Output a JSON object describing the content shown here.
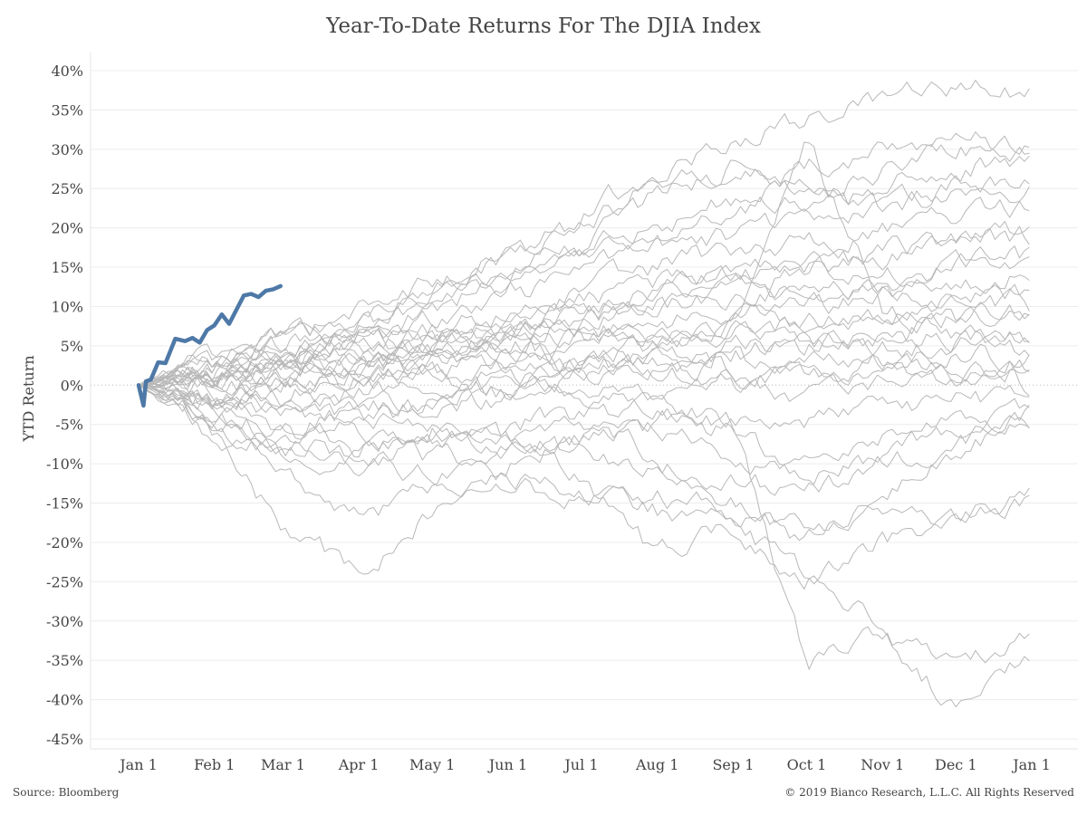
{
  "chart_data": {
    "type": "line",
    "title": "Year-To-Date Returns For The DJIA Index",
    "ylabel": "YTD Return",
    "xlabel": "",
    "ylim": [
      -45,
      40
    ],
    "y_ticks": [
      -45,
      -40,
      -35,
      -30,
      -25,
      -20,
      -15,
      -10,
      -5,
      0,
      5,
      10,
      15,
      20,
      25,
      30,
      35,
      40
    ],
    "y_tick_format": "%",
    "x_tick_labels": [
      "Jan 1",
      "Feb 1",
      "Mar 1",
      "Apr 1",
      "May 1",
      "Jun 1",
      "Jul 1",
      "Aug 1",
      "Sep 1",
      "Oct 1",
      "Nov 1",
      "Dec 1",
      "Jan 1"
    ],
    "x_tick_days": [
      0,
      31,
      59,
      90,
      120,
      151,
      181,
      212,
      243,
      273,
      304,
      334,
      365
    ],
    "grid": "horizontal",
    "zero_line": "dotted",
    "history_color": "#b8b8b8",
    "highlight_color": "#4e79a7",
    "highlight": {
      "x": [
        0,
        2,
        3,
        5,
        8,
        11,
        15,
        19,
        22,
        25,
        28,
        31,
        34,
        37,
        40,
        43,
        46,
        49,
        52,
        55,
        58
      ],
      "y": [
        0.0,
        -2.6,
        0.5,
        0.7,
        2.9,
        2.8,
        5.9,
        5.6,
        6.0,
        5.4,
        7.0,
        7.6,
        9.0,
        7.8,
        9.6,
        11.4,
        11.6,
        11.2,
        12.0,
        12.2,
        12.6
      ]
    },
    "series": [
      {
        "values": [
          0,
          3,
          6,
          9,
          13,
          17,
          22,
          27,
          31,
          34,
          36,
          38,
          37
        ]
      },
      {
        "values": [
          0,
          2,
          4,
          6,
          10,
          13,
          16,
          19,
          22,
          24,
          27,
          30,
          31
        ]
      },
      {
        "values": [
          0,
          4,
          5,
          8,
          12,
          14,
          18,
          24,
          28,
          23,
          26,
          28,
          29
        ]
      },
      {
        "values": [
          0,
          1,
          3,
          7,
          11,
          15,
          20,
          26,
          27,
          25,
          22,
          25,
          27
        ]
      },
      {
        "values": [
          0,
          2,
          6,
          9,
          12,
          16,
          18,
          20,
          24,
          28,
          30,
          32,
          30
        ]
      },
      {
        "values": [
          0,
          3,
          5,
          6,
          8,
          11,
          14,
          18,
          19,
          21,
          23,
          25,
          25
        ]
      },
      {
        "values": [
          0,
          1,
          2,
          4,
          6,
          9,
          12,
          15,
          17,
          18,
          20,
          21,
          23
        ]
      },
      {
        "values": [
          0,
          -1,
          1,
          3,
          5,
          8,
          10,
          11,
          13,
          15,
          16,
          19,
          20
        ]
      },
      {
        "values": [
          0,
          2,
          3,
          5,
          7,
          9,
          11,
          13,
          14,
          15,
          17,
          18,
          19
        ]
      },
      {
        "values": [
          0,
          1,
          4,
          6,
          5,
          7,
          8,
          10,
          12,
          11,
          13,
          15,
          17
        ]
      },
      {
        "values": [
          0,
          -2,
          0,
          2,
          4,
          6,
          9,
          12,
          14,
          15,
          14,
          16,
          16
        ]
      },
      {
        "values": [
          0,
          3,
          4,
          5,
          6,
          7,
          9,
          10,
          11,
          12,
          12,
          13,
          14
        ]
      },
      {
        "values": [
          0,
          0,
          2,
          3,
          4,
          6,
          8,
          8,
          9,
          10,
          11,
          11,
          11
        ]
      },
      {
        "values": [
          0,
          -3,
          -1,
          1,
          3,
          5,
          6,
          7,
          8,
          8,
          9,
          10,
          10
        ]
      },
      {
        "values": [
          0,
          2,
          3,
          4,
          3,
          5,
          6,
          6,
          7,
          8,
          8,
          9,
          9
        ]
      },
      {
        "values": [
          0,
          -1,
          0,
          2,
          2,
          3,
          5,
          6,
          7,
          6,
          7,
          8,
          8
        ]
      },
      {
        "values": [
          0,
          1,
          2,
          2,
          3,
          4,
          3,
          4,
          5,
          5,
          6,
          6,
          6
        ]
      },
      {
        "values": [
          0,
          3,
          5,
          7,
          6,
          4,
          2,
          3,
          4,
          5,
          5,
          5,
          5
        ]
      },
      {
        "values": [
          0,
          -2,
          -3,
          -1,
          1,
          2,
          3,
          2,
          3,
          2,
          3,
          4,
          3
        ]
      },
      {
        "values": [
          0,
          1,
          2,
          0,
          -1,
          1,
          2,
          3,
          2,
          1,
          2,
          2,
          2
        ]
      },
      {
        "values": [
          0,
          -3,
          -5,
          -4,
          -2,
          0,
          1,
          2,
          0,
          -2,
          0,
          1,
          1
        ]
      },
      {
        "values": [
          0,
          2,
          1,
          3,
          1,
          -1,
          0,
          -1,
          1,
          2,
          1,
          1,
          0
        ]
      },
      {
        "values": [
          0,
          -4,
          -6,
          -5,
          -3,
          -2,
          -1,
          -3,
          -4,
          -5,
          -3,
          -2,
          -2
        ]
      },
      {
        "values": [
          0,
          -1,
          -3,
          -4,
          -6,
          -8,
          -7,
          -6,
          -9,
          -10,
          -7,
          -5,
          -4
        ]
      },
      {
        "values": [
          0,
          -5,
          -8,
          -9,
          -7,
          -6,
          -9,
          -10,
          -12,
          -14,
          -10,
          -7,
          -5
        ]
      },
      {
        "values": [
          0,
          -6,
          -9,
          -10,
          -11,
          -13,
          -15,
          -14,
          -16,
          -18,
          -17,
          -16,
          -15
        ]
      },
      {
        "values": [
          0,
          -4,
          -10,
          -17,
          -13,
          -8,
          -5,
          -9,
          -15,
          -20,
          -14,
          -8,
          -5
        ]
      },
      {
        "values": [
          0,
          -7,
          -18,
          -24,
          -16,
          -10,
          -7,
          -4,
          -6,
          -12,
          -9,
          -6,
          -4
        ]
      },
      {
        "values": [
          0,
          -2,
          -6,
          -8,
          -5,
          -7,
          -12,
          -22,
          -18,
          -25,
          -20,
          -17,
          -14
        ]
      },
      {
        "values": [
          0,
          2,
          1,
          -3,
          -2,
          0,
          3,
          5,
          8,
          31,
          10,
          6,
          4
        ]
      },
      {
        "values": [
          0,
          -3,
          -7,
          -10,
          -8,
          -5,
          -4,
          -3,
          -5,
          -35,
          -32,
          -36,
          -32
        ]
      },
      {
        "values": [
          0,
          1,
          -2,
          -6,
          -9,
          -11,
          -13,
          -16,
          -18,
          -24,
          -30,
          -42,
          -34
        ]
      }
    ]
  },
  "footer": {
    "source": "Source: Bloomberg",
    "copyright": "© 2019 Bianco Research, L.L.C. All Rights Reserved"
  }
}
